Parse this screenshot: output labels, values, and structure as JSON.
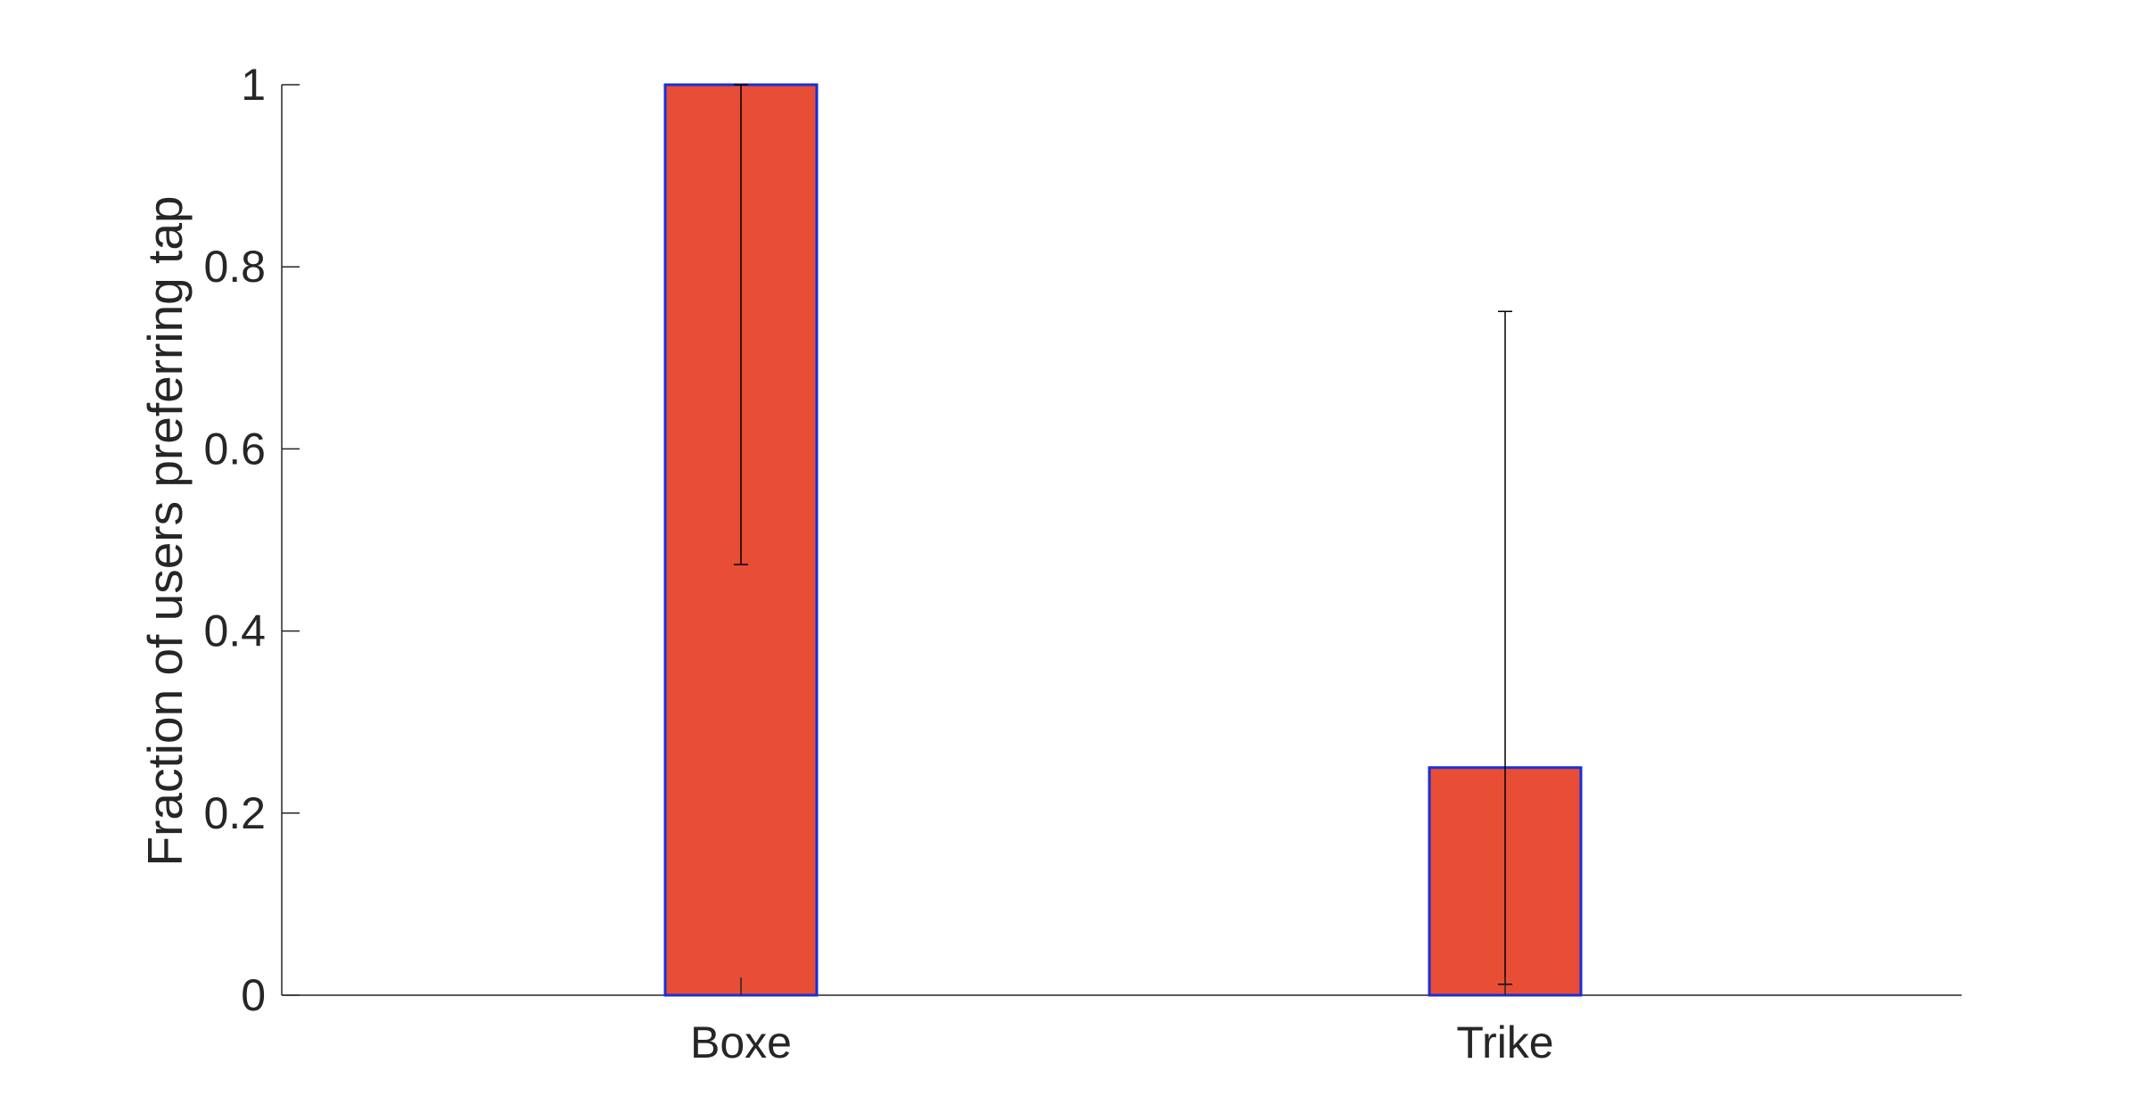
{
  "chart_data": {
    "type": "bar",
    "title": "",
    "xlabel": "",
    "ylabel": "Fraction of users preferring tap",
    "categories": [
      "Boxe",
      "Trike"
    ],
    "values": [
      1.0,
      0.25
    ],
    "error_bars": [
      {
        "lower": 0.473,
        "upper": 1.0
      },
      {
        "lower": 0.012,
        "upper": 0.751
      }
    ],
    "ylim": [
      0,
      1
    ],
    "yticks": [
      0,
      0.2,
      0.4,
      0.6,
      0.8,
      1
    ],
    "ytick_labels": [
      "0",
      "0.2",
      "0.4",
      "0.6",
      "0.8",
      "1"
    ],
    "grid": false,
    "colors": {
      "bar_fill": "#e84d35",
      "bar_edge": "#1a2fd6",
      "error_bar": "#000000",
      "axis": "#262626"
    }
  }
}
